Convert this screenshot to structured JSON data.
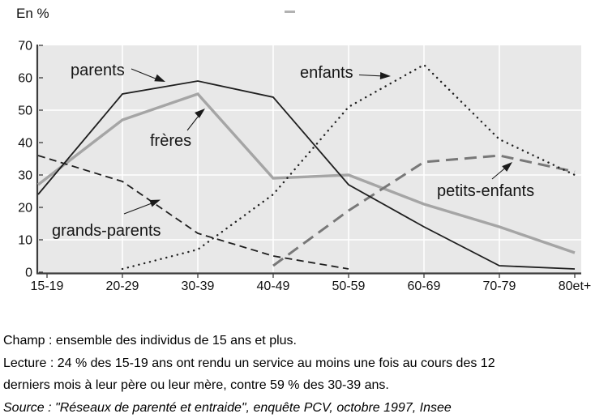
{
  "chart_data": {
    "type": "line",
    "ylabel_top": "En %",
    "categories": [
      "15-19",
      "20-29",
      "30-39",
      "40-49",
      "50-59",
      "60-69",
      "70-79",
      "80et+"
    ],
    "series": [
      {
        "name": "parents",
        "color": "#1f1f1f",
        "line_style": "solid-thin",
        "values": [
          24,
          55,
          59,
          54,
          27,
          14,
          2,
          1
        ]
      },
      {
        "name": "frères",
        "color": "#a5a5a5",
        "line_style": "solid-thick",
        "values": [
          27,
          47,
          55,
          29,
          30,
          21,
          14,
          6
        ]
      },
      {
        "name": "grands-parents",
        "color": "#1f1f1f",
        "line_style": "dashed",
        "values": [
          36,
          28,
          12,
          5,
          1,
          null,
          null,
          null
        ]
      },
      {
        "name": "enfants",
        "color": "#1f1f1f",
        "line_style": "dotted",
        "values": [
          null,
          1,
          7,
          24,
          51,
          64,
          41,
          30
        ]
      },
      {
        "name": "petits-enfants",
        "color": "#787878",
        "line_style": "long-dash",
        "values": [
          null,
          null,
          null,
          2,
          19,
          34,
          36,
          31
        ]
      }
    ],
    "ylim": [
      0,
      70
    ],
    "yticks": [
      0,
      10,
      20,
      30,
      40,
      50,
      60,
      70
    ],
    "gridlines": {
      "horizontal_at": [
        10,
        30,
        50
      ],
      "vertical_at_category_indices": [
        1,
        2,
        3,
        4,
        5,
        6
      ],
      "color": "#ffffff"
    },
    "plot_background": "#e8e8e8",
    "axis_color": "#3c3c3c",
    "legend_position": "inline-annotations"
  },
  "footer": {
    "champ": "Champ : ensemble des individus de 15 ans et plus.",
    "lecture_line1": "Lecture : 24 % des 15-19 ans ont rendu un service au moins une fois au cours des 12",
    "lecture_line2": "derniers mois à leur père ou leur mère, contre 59 % des 30-39 ans.",
    "source": "Source : \"Réseaux de parenté et entraide\", enquête PCV, octobre 1997, Insee"
  }
}
